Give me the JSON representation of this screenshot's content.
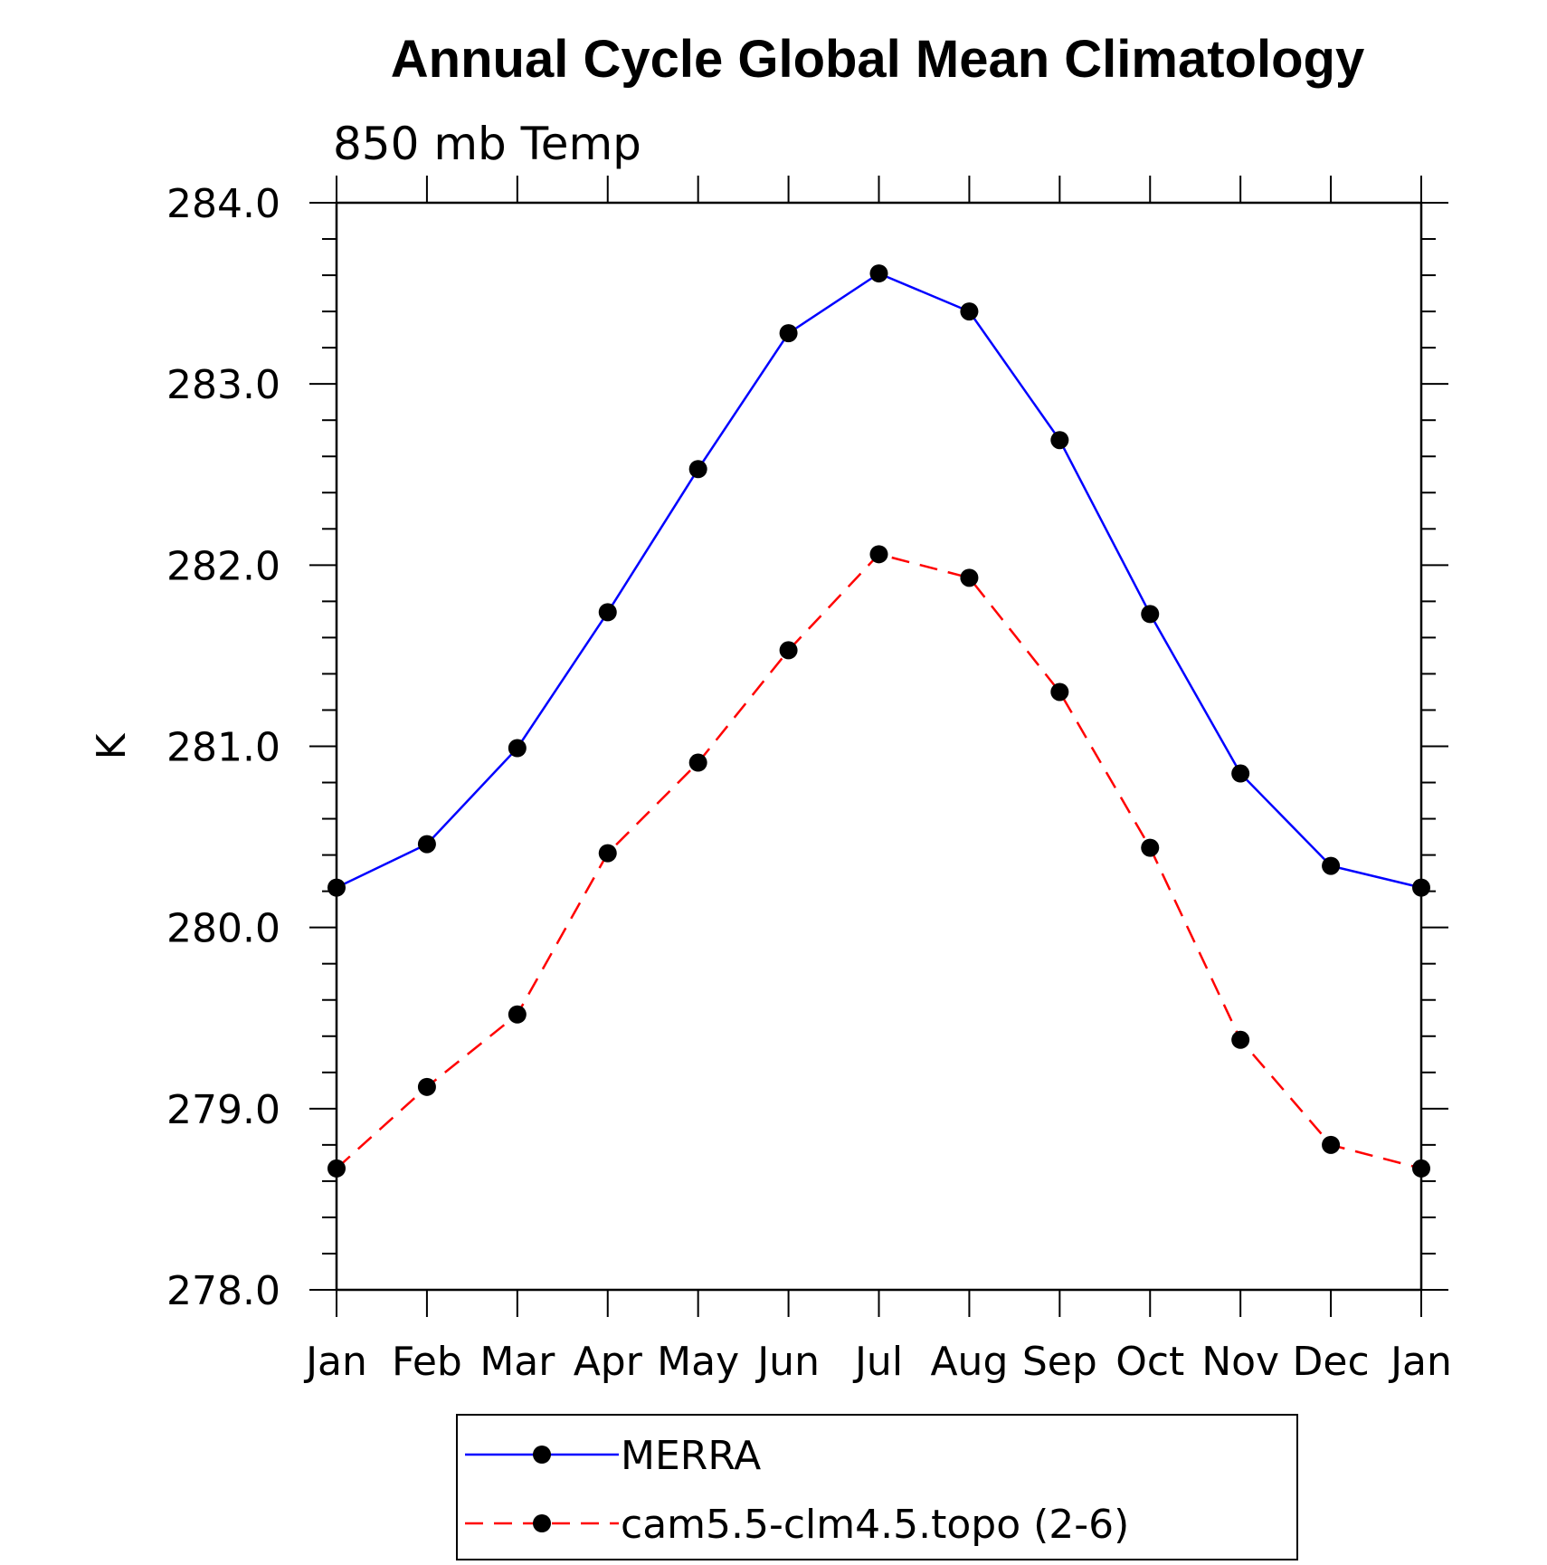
{
  "chart_data": {
    "type": "line",
    "title": "Annual Cycle Global Mean Climatology",
    "subtitle": "850 mb Temp",
    "xlabel": "",
    "ylabel": "K",
    "categories": [
      "Jan",
      "Feb",
      "Mar",
      "Apr",
      "May",
      "Jun",
      "Jul",
      "Aug",
      "Sep",
      "Oct",
      "Nov",
      "Dec",
      "Jan"
    ],
    "ylim": [
      278.0,
      284.0
    ],
    "yticks": [
      "278.0",
      "279.0",
      "280.0",
      "281.0",
      "282.0",
      "283.0",
      "284.0"
    ],
    "grid": false,
    "legend_position": "bottom",
    "series": [
      {
        "name": "MERRA",
        "color": "#0000ff",
        "line_style": "solid",
        "marker": "filled-circle",
        "values": [
          280.22,
          280.46,
          280.99,
          281.74,
          282.53,
          283.28,
          283.61,
          283.4,
          282.69,
          281.73,
          280.85,
          280.34,
          280.22
        ]
      },
      {
        "name": "cam5.5-clm4.5.topo (2-6)",
        "color": "#ff0000",
        "line_style": "dashed",
        "marker": "filled-circle",
        "values": [
          278.67,
          279.12,
          279.52,
          280.41,
          280.91,
          281.53,
          282.06,
          281.93,
          281.3,
          280.44,
          279.38,
          278.8,
          278.67
        ]
      }
    ]
  }
}
